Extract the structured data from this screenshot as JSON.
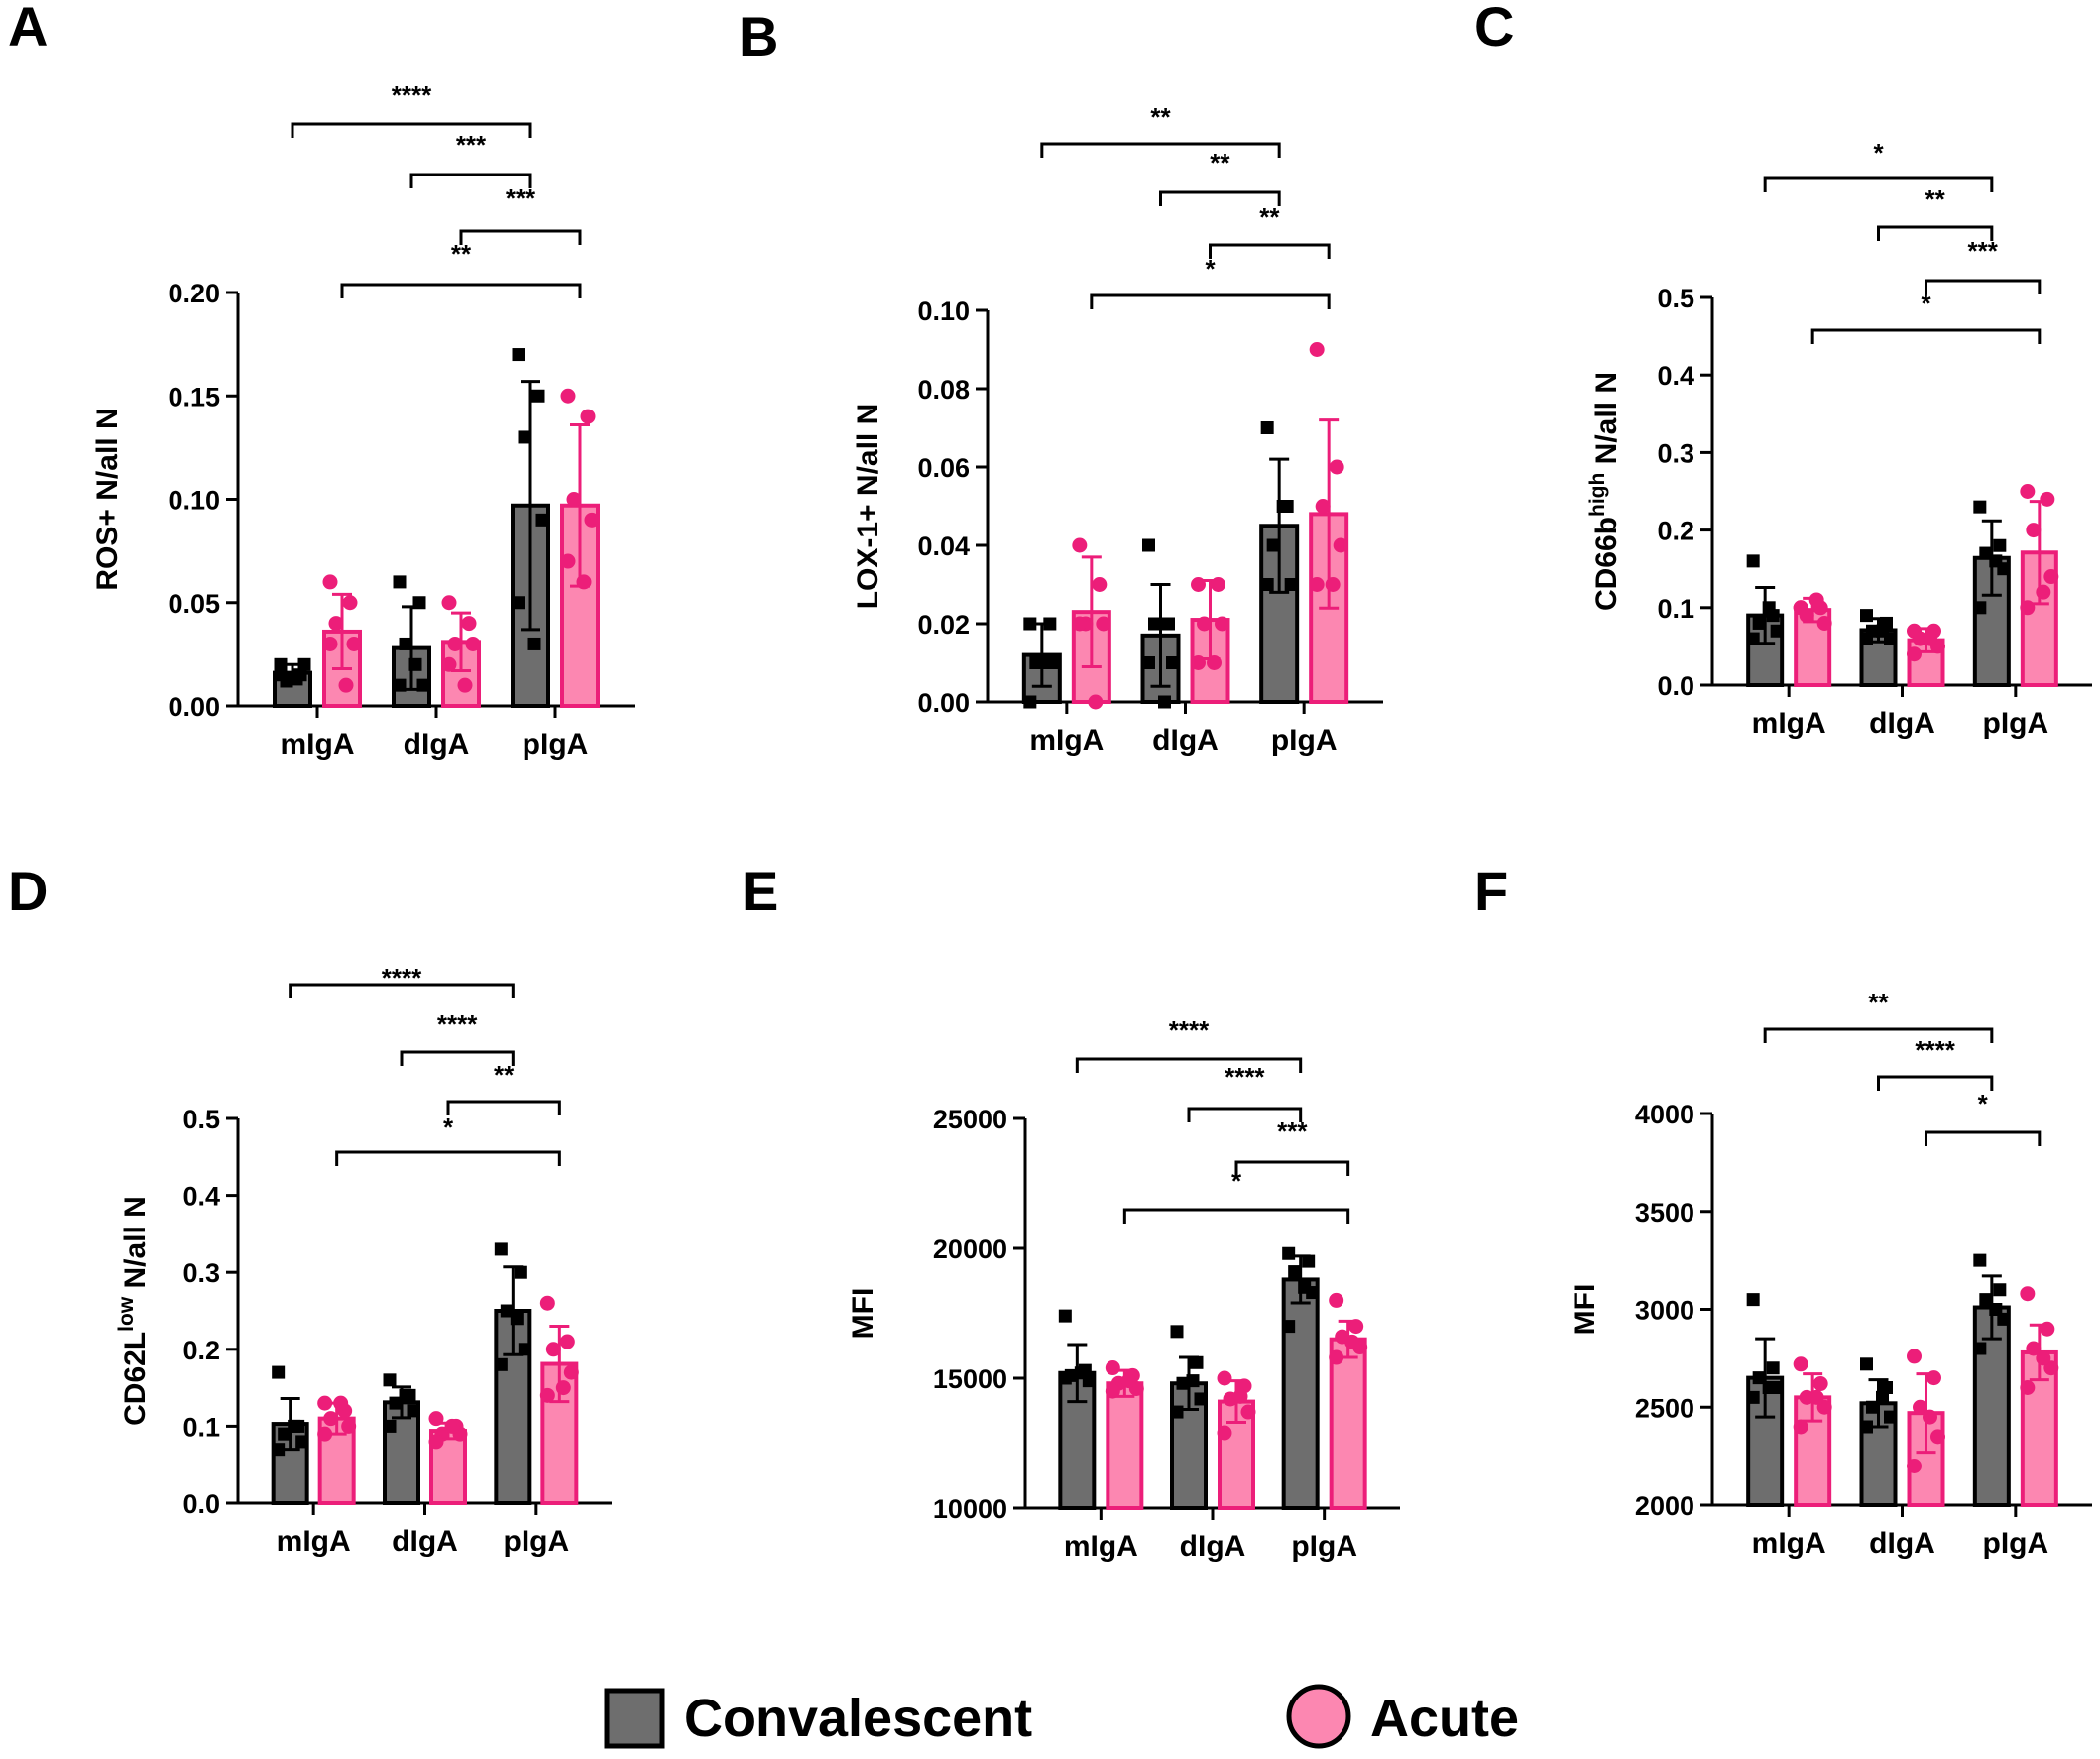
{
  "colors": {
    "convalescent_fill": "#6e6e6e",
    "acute_fill": "#fc87b1",
    "acute_stroke": "#ec1e79",
    "black": "#000000"
  },
  "legend": {
    "convalescent": "Convalescent",
    "acute": "Acute"
  },
  "chart_data": [
    {
      "panel": "A",
      "type": "bar",
      "ylabel": "ROS+ N/all N",
      "categories": [
        "mIgA",
        "dIgA",
        "pIgA"
      ],
      "ylim": [
        0,
        0.2
      ],
      "ticks": [
        0.0,
        0.05,
        0.1,
        0.15,
        0.2
      ],
      "tick_labels": [
        "0.00",
        "0.05",
        "0.10",
        "0.15",
        "0.20"
      ],
      "series": [
        {
          "name": "Convalescent",
          "means": [
            0.016,
            0.028,
            0.097
          ],
          "sd": [
            0.004,
            0.02,
            0.06
          ],
          "points": [
            [
              0.02,
              0.015,
              0.012,
              0.02,
              0.015,
              0.013
            ],
            [
              0.06,
              0.05,
              0.03,
              0.01,
              0.01,
              0.02
            ],
            [
              0.17,
              0.15,
              0.13,
              0.09,
              0.05,
              0.03
            ]
          ]
        },
        {
          "name": "Acute",
          "means": [
            0.036,
            0.031,
            0.097
          ],
          "sd": [
            0.018,
            0.014,
            0.039
          ],
          "points": [
            [
              0.06,
              0.05,
              0.04,
              0.03,
              0.03,
              0.01
            ],
            [
              0.05,
              0.04,
              0.03,
              0.03,
              0.02,
              0.01
            ],
            [
              0.15,
              0.14,
              0.1,
              0.09,
              0.07,
              0.06
            ]
          ]
        }
      ],
      "comparisons": [
        {
          "from": 0,
          "to": 4,
          "label": "****"
        },
        {
          "from": 2,
          "to": 4,
          "label": "***"
        },
        {
          "from": 3,
          "to": 5,
          "label": "***"
        },
        {
          "from": 1,
          "to": 5,
          "label": "**"
        }
      ]
    },
    {
      "panel": "B",
      "type": "bar",
      "ylabel": "LOX-1+ N/all N",
      "categories": [
        "mIgA",
        "dIgA",
        "pIgA"
      ],
      "ylim": [
        0,
        0.1
      ],
      "ticks": [
        0.0,
        0.02,
        0.04,
        0.06,
        0.08,
        0.1
      ],
      "tick_labels": [
        "0.00",
        "0.02",
        "0.04",
        "0.06",
        "0.08",
        "0.10"
      ],
      "series": [
        {
          "name": "Convalescent",
          "means": [
            0.012,
            0.017,
            0.045
          ],
          "sd": [
            0.008,
            0.013,
            0.017
          ],
          "points": [
            [
              0.02,
              0.02,
              0.01,
              0.01,
              0.0,
              0.01
            ],
            [
              0.04,
              0.02,
              0.02,
              0.01,
              0.01,
              0.0
            ],
            [
              0.07,
              0.05,
              0.04,
              0.03,
              0.03,
              0.05
            ]
          ]
        },
        {
          "name": "Acute",
          "means": [
            0.023,
            0.021,
            0.048
          ],
          "sd": [
            0.014,
            0.01,
            0.024
          ],
          "points": [
            [
              0.04,
              0.03,
              0.02,
              0.02,
              0.02,
              0.0
            ],
            [
              0.03,
              0.03,
              0.02,
              0.02,
              0.01,
              0.01
            ],
            [
              0.09,
              0.06,
              0.05,
              0.04,
              0.03,
              0.03
            ]
          ]
        }
      ],
      "comparisons": [
        {
          "from": 0,
          "to": 4,
          "label": "**"
        },
        {
          "from": 2,
          "to": 4,
          "label": "**"
        },
        {
          "from": 3,
          "to": 5,
          "label": "**"
        },
        {
          "from": 1,
          "to": 5,
          "label": "*"
        }
      ]
    },
    {
      "panel": "C",
      "type": "bar",
      "ylabel": "CD66b^high N/all N",
      "ylabel_parts": [
        "CD66b",
        "high",
        " N/all N"
      ],
      "categories": [
        "mIgA",
        "dIgA",
        "pIgA"
      ],
      "ylim": [
        0,
        0.5
      ],
      "ticks": [
        0.0,
        0.1,
        0.2,
        0.3,
        0.4,
        0.5
      ],
      "tick_labels": [
        "0.0",
        "0.1",
        "0.2",
        "0.3",
        "0.4",
        "0.5"
      ],
      "series": [
        {
          "name": "Convalescent",
          "means": [
            0.09,
            0.071,
            0.164
          ],
          "sd": [
            0.036,
            0.015,
            0.048
          ],
          "points": [
            [
              0.16,
              0.09,
              0.08,
              0.07,
              0.06,
              0.1
            ],
            [
              0.09,
              0.08,
              0.07,
              0.06,
              0.06,
              0.07
            ],
            [
              0.23,
              0.18,
              0.17,
              0.15,
              0.1,
              0.16
            ]
          ]
        },
        {
          "name": "Acute",
          "means": [
            0.097,
            0.058,
            0.171
          ],
          "sd": [
            0.015,
            0.015,
            0.066
          ],
          "points": [
            [
              0.1,
              0.1,
              0.09,
              0.08,
              0.1,
              0.11
            ],
            [
              0.07,
              0.07,
              0.06,
              0.05,
              0.04,
              0.06
            ],
            [
              0.25,
              0.24,
              0.2,
              0.14,
              0.1,
              0.12
            ]
          ]
        }
      ],
      "comparisons": [
        {
          "from": 0,
          "to": 4,
          "label": "*"
        },
        {
          "from": 2,
          "to": 4,
          "label": "**"
        },
        {
          "from": 3,
          "to": 5,
          "label": "***"
        },
        {
          "from": 1,
          "to": 5,
          "label": "*"
        }
      ]
    },
    {
      "panel": "D",
      "type": "bar",
      "ylabel": "CD62L^low N/all N",
      "ylabel_parts": [
        "CD62L",
        "low",
        " N/all N"
      ],
      "categories": [
        "mIgA",
        "dIgA",
        "pIgA"
      ],
      "ylim": [
        0,
        0.5
      ],
      "ticks": [
        0.0,
        0.1,
        0.2,
        0.3,
        0.4,
        0.5
      ],
      "tick_labels": [
        "0.0",
        "0.1",
        "0.2",
        "0.3",
        "0.4",
        "0.5"
      ],
      "series": [
        {
          "name": "Convalescent",
          "means": [
            0.103,
            0.131,
            0.25
          ],
          "sd": [
            0.033,
            0.02,
            0.057
          ],
          "points": [
            [
              0.17,
              0.1,
              0.09,
              0.08,
              0.07,
              0.1
            ],
            [
              0.16,
              0.14,
              0.13,
              0.12,
              0.1,
              0.14
            ],
            [
              0.33,
              0.3,
              0.25,
              0.2,
              0.18,
              0.24
            ]
          ]
        },
        {
          "name": "Acute",
          "means": [
            0.11,
            0.094,
            0.181
          ],
          "sd": [
            0.02,
            0.01,
            0.049
          ],
          "points": [
            [
              0.13,
              0.12,
              0.11,
              0.1,
              0.09,
              0.13
            ],
            [
              0.11,
              0.1,
              0.09,
              0.09,
              0.08,
              0.1
            ],
            [
              0.26,
              0.21,
              0.2,
              0.17,
              0.14,
              0.15
            ]
          ]
        }
      ],
      "comparisons": [
        {
          "from": 0,
          "to": 4,
          "label": "****"
        },
        {
          "from": 2,
          "to": 4,
          "label": "****"
        },
        {
          "from": 3,
          "to": 5,
          "label": "**"
        },
        {
          "from": 1,
          "to": 5,
          "label": "*"
        }
      ]
    },
    {
      "panel": "E",
      "type": "bar",
      "ylabel": "MFI",
      "categories": [
        "mIgA",
        "dIgA",
        "pIgA"
      ],
      "ylim": [
        10000,
        25000
      ],
      "ticks": [
        10000,
        15000,
        20000,
        25000
      ],
      "tick_labels": [
        "10000",
        "15000",
        "20000",
        "25000"
      ],
      "series": [
        {
          "name": "Convalescent",
          "means": [
            15200,
            14800,
            18800
          ],
          "sd": [
            1100,
            1000,
            900
          ],
          "points": [
            [
              17400,
              15300,
              15100,
              14900,
              15000,
              15200
            ],
            [
              16800,
              15600,
              14800,
              14200,
              13700,
              14900
            ],
            [
              19800,
              19500,
              19100,
              18300,
              17000,
              18500
            ]
          ]
        },
        {
          "name": "Acute",
          "means": [
            14800,
            14100,
            16500
          ],
          "sd": [
            500,
            800,
            700
          ],
          "points": [
            [
              15400,
              15100,
              14800,
              14600,
              14500,
              14900
            ],
            [
              15000,
              14700,
              14200,
              13700,
              12900,
              14300
            ],
            [
              18000,
              17000,
              16600,
              16200,
              15800,
              16400
            ]
          ]
        }
      ],
      "comparisons": [
        {
          "from": 0,
          "to": 4,
          "label": "****"
        },
        {
          "from": 2,
          "to": 4,
          "label": "****"
        },
        {
          "from": 3,
          "to": 5,
          "label": "***"
        },
        {
          "from": 1,
          "to": 5,
          "label": "*"
        }
      ]
    },
    {
      "panel": "F",
      "type": "bar",
      "ylabel": "MFI",
      "categories": [
        "mIgA",
        "dIgA",
        "pIgA"
      ],
      "ylim": [
        2000,
        4000
      ],
      "ticks": [
        2000,
        2500,
        3000,
        3500,
        4000
      ],
      "tick_labels": [
        "2000",
        "2500",
        "3000",
        "3500",
        "4000"
      ],
      "series": [
        {
          "name": "Convalescent",
          "means": [
            2650,
            2520,
            3010
          ],
          "sd": [
            200,
            120,
            160
          ],
          "points": [
            [
              3050,
              2700,
              2650,
              2600,
              2550,
              2600
            ],
            [
              2720,
              2600,
              2500,
              2450,
              2400,
              2550
            ],
            [
              3250,
              3100,
              3050,
              2950,
              2800,
              3000
            ]
          ]
        },
        {
          "name": "Acute",
          "means": [
            2550,
            2470,
            2780
          ],
          "sd": [
            120,
            200,
            140
          ],
          "points": [
            [
              2720,
              2620,
              2550,
              2500,
              2400,
              2550
            ],
            [
              2760,
              2650,
              2500,
              2350,
              2200,
              2450
            ],
            [
              3080,
              2900,
              2800,
              2700,
              2600,
              2750
            ]
          ]
        }
      ],
      "comparisons": [
        {
          "from": 0,
          "to": 4,
          "label": "**"
        },
        {
          "from": 2,
          "to": 4,
          "label": "****"
        },
        {
          "from": 3,
          "to": 5,
          "label": "*"
        }
      ]
    }
  ]
}
